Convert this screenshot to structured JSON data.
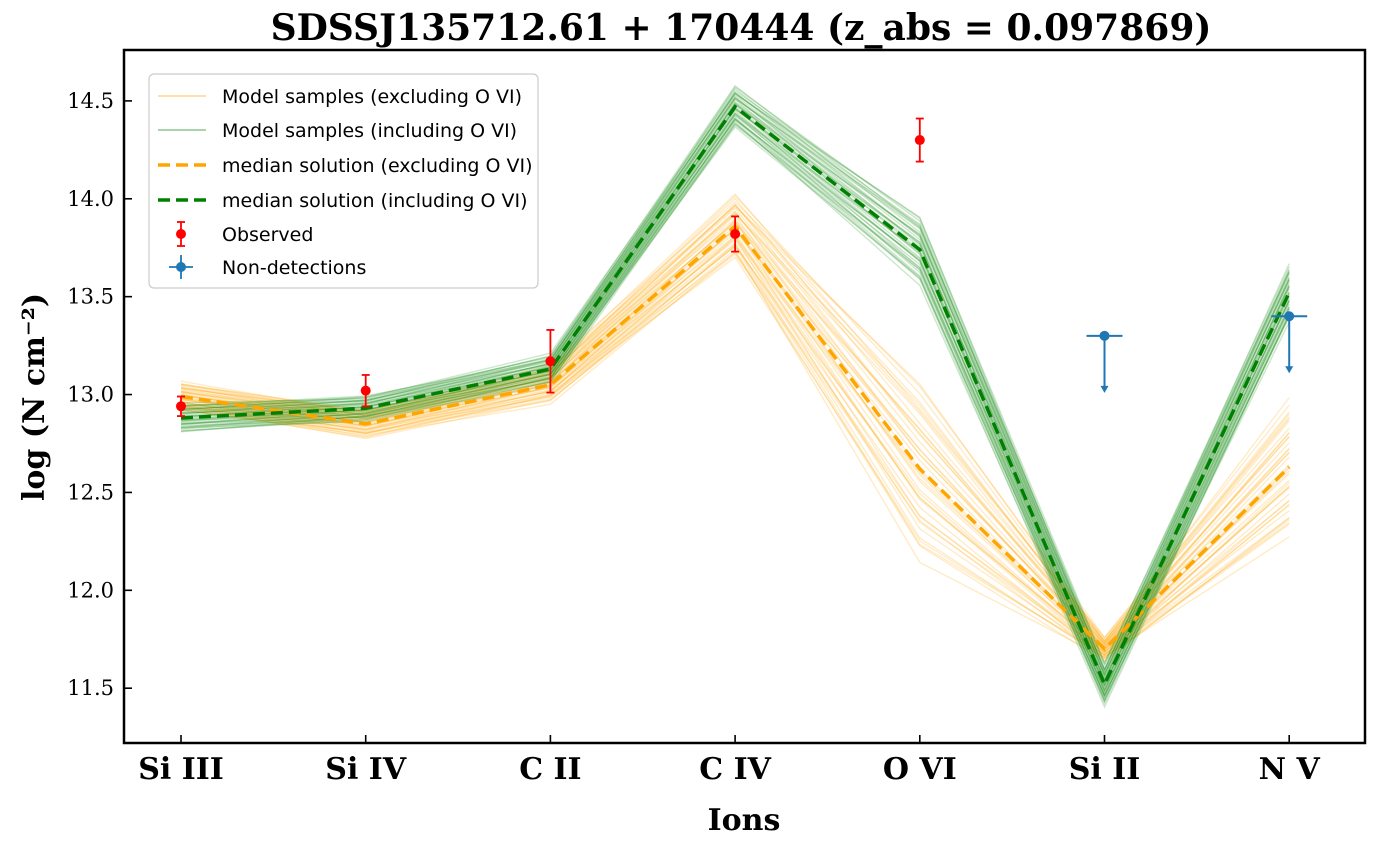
{
  "chart_data": {
    "type": "line",
    "title": "SDSSJ135712.61 + 170444 (z_abs = 0.097869)",
    "xlabel": "Ions",
    "ylabel": "log (N cm⁻²)",
    "categories": [
      "Si III",
      "Si IV",
      "C II",
      "C IV",
      "O VI",
      "Si II",
      "N V"
    ],
    "ylim": [
      11.22,
      14.76
    ],
    "yticks": [
      11.5,
      12.0,
      12.5,
      13.0,
      13.5,
      14.0,
      14.5
    ],
    "ytick_labels": [
      "11.5",
      "12.0",
      "12.5",
      "13.0",
      "13.5",
      "14.0",
      "14.5"
    ],
    "grid": false,
    "legend_position": "upper-left",
    "series": [
      {
        "name": "median solution (excluding O VI)",
        "color": "#ffa500",
        "style": "dashed",
        "values": [
          12.99,
          12.85,
          13.05,
          13.86,
          12.62,
          11.7,
          12.63
        ]
      },
      {
        "name": "median solution (including O VI)",
        "color": "#008000",
        "style": "dashed",
        "values": [
          12.88,
          12.93,
          13.13,
          14.47,
          13.74,
          11.52,
          13.52
        ]
      },
      {
        "name": "Observed",
        "color": "#ff0000",
        "style": "errorbar",
        "points": [
          {
            "category": "Si III",
            "value": 12.94,
            "err": 0.05
          },
          {
            "category": "Si IV",
            "value": 13.02,
            "err": 0.08
          },
          {
            "category": "C II",
            "value": 13.17,
            "err": 0.16
          },
          {
            "category": "C IV",
            "value": 13.82,
            "err": 0.09
          },
          {
            "category": "O VI",
            "value": 14.3,
            "err": 0.11
          }
        ]
      },
      {
        "name": "Non-detections",
        "color": "#1f77b4",
        "style": "upper-limit",
        "points": [
          {
            "category": "Si II",
            "value": 13.3
          },
          {
            "category": "N V",
            "value": 13.4
          }
        ]
      }
    ],
    "model_sample_bands": [
      {
        "name": "Model samples (excluding O VI)",
        "color": "#ffa500",
        "center": [
          12.99,
          12.85,
          13.05,
          13.86,
          12.62,
          11.7,
          12.63
        ],
        "spread": [
          0.09,
          0.09,
          0.11,
          0.2,
          0.55,
          0.07,
          0.43
        ]
      },
      {
        "name": "Model samples (including O VI)",
        "color": "#008000",
        "center": [
          12.88,
          12.93,
          13.13,
          14.47,
          13.74,
          11.52,
          13.52
        ],
        "spread": [
          0.09,
          0.08,
          0.09,
          0.13,
          0.21,
          0.13,
          0.18
        ]
      }
    ],
    "legend": [
      {
        "label": "Model samples (excluding O VI)",
        "color": "#ffa500",
        "kind": "thin-line"
      },
      {
        "label": "Model samples (including O VI)",
        "color": "#008000",
        "kind": "thin-line"
      },
      {
        "label": "median solution (excluding O VI)",
        "color": "#ffa500",
        "kind": "dashed"
      },
      {
        "label": "median solution (including O VI)",
        "color": "#008000",
        "kind": "dashed"
      },
      {
        "label": "Observed",
        "color": "#ff0000",
        "kind": "errorbar"
      },
      {
        "label": "Non-detections",
        "color": "#1f77b4",
        "kind": "errorbar-x"
      }
    ]
  }
}
